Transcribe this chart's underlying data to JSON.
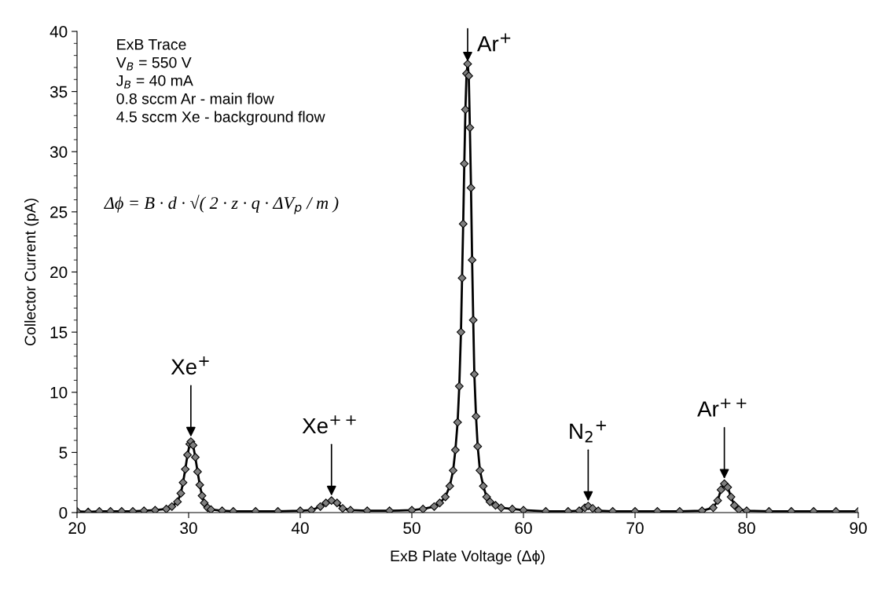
{
  "chart_data": {
    "type": "line",
    "xlabel": "ExB Plate Voltage (Δϕ)",
    "ylabel": "Collector Current (pA)",
    "xlim": [
      20,
      90
    ],
    "xticks": [
      20,
      30,
      40,
      50,
      60,
      70,
      80,
      90
    ],
    "ylim": [
      0,
      40
    ],
    "yticks": [
      0,
      5,
      10,
      15,
      20,
      25,
      30,
      35,
      40
    ],
    "grid": false,
    "marker": "diamond",
    "line_style": "solid",
    "series": [
      {
        "color": "#000000",
        "x": [
          20,
          21,
          22,
          23,
          24,
          25,
          26,
          27,
          28,
          28.5,
          29,
          29.3,
          29.5,
          29.7,
          29.9,
          30.1,
          30.2,
          30.4,
          30.6,
          30.8,
          31.0,
          31.2,
          31.4,
          31.7,
          32,
          33,
          34,
          36,
          38,
          40,
          41,
          41.8,
          42.3,
          42.8,
          43.3,
          43.8,
          44.5,
          46,
          48,
          50,
          51,
          52,
          52.5,
          53,
          53.4,
          53.7,
          53.9,
          54.1,
          54.25,
          54.4,
          54.5,
          54.6,
          54.7,
          54.8,
          54.9,
          55.0,
          55.1,
          55.2,
          55.3,
          55.4,
          55.5,
          55.6,
          55.75,
          55.9,
          56.1,
          56.4,
          56.7,
          57,
          57.5,
          58,
          59,
          60,
          62,
          64,
          65,
          65.5,
          65.8,
          66.2,
          66.7,
          68,
          70,
          72,
          74,
          76,
          77,
          77.4,
          77.7,
          78,
          78.3,
          78.6,
          78.9,
          79.3,
          80,
          82,
          84,
          86,
          88,
          90
        ],
        "values": [
          0.1,
          0.05,
          0.1,
          0.1,
          0.1,
          0.1,
          0.15,
          0.2,
          0.3,
          0.5,
          0.9,
          1.6,
          2.5,
          3.6,
          4.8,
          5.7,
          5.9,
          5.6,
          4.6,
          3.4,
          2.3,
          1.4,
          0.8,
          0.4,
          0.25,
          0.15,
          0.1,
          0.1,
          0.1,
          0.15,
          0.2,
          0.5,
          0.8,
          1.0,
          0.8,
          0.35,
          0.2,
          0.15,
          0.15,
          0.2,
          0.3,
          0.5,
          0.8,
          1.3,
          2.2,
          3.5,
          5.2,
          7.5,
          10.5,
          15,
          19.5,
          24,
          29,
          33.5,
          36.5,
          37.3,
          36.3,
          32,
          27,
          21,
          16,
          11.5,
          8,
          5.5,
          3.5,
          2.2,
          1.3,
          0.9,
          0.6,
          0.4,
          0.3,
          0.2,
          0.1,
          0.1,
          0.15,
          0.4,
          0.55,
          0.35,
          0.15,
          0.1,
          0.1,
          0.1,
          0.1,
          0.15,
          0.4,
          1.0,
          1.9,
          2.4,
          2.1,
          1.3,
          0.6,
          0.25,
          0.15,
          0.1,
          0.1,
          0.1,
          0.1,
          0.1
        ]
      }
    ],
    "annotations": [
      "ExB Trace\nV$_{B}$ = 550 V\nJ$_{B}$ = 40 mA\n0.8 sccm Ar - main flow\n4.5 sccm Xe - background flow",
      "Δϕ = B · d · √( 2 · z · q · ΔV$_{p}$ / m )",
      {
        "text": "Xe$^{+}$",
        "x": 30.2,
        "y": 5.9
      },
      {
        "text": "Xe$^{++}$",
        "x": 42.8,
        "y": 1.0
      },
      {
        "text": "Ar$^{+}$",
        "x": 55.0,
        "y": 37.3
      },
      {
        "text": "N$_{2}$$^{+}$",
        "x": 65.8,
        "y": 0.55
      },
      {
        "text": "Ar$^{++}$",
        "x": 78.0,
        "y": 2.4
      }
    ]
  }
}
